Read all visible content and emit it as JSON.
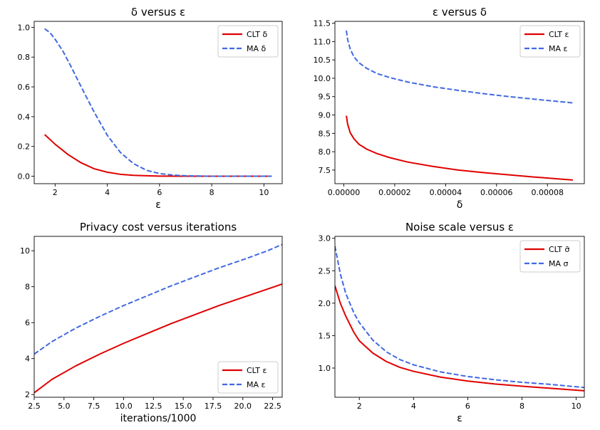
{
  "chart_data": [
    {
      "type": "line",
      "title": "δ versus ε",
      "xlabel": "ε",
      "ylabel": "",
      "xlim": [
        1.2,
        10.7
      ],
      "ylim": [
        -0.05,
        1.04
      ],
      "xticks": [
        2,
        4,
        6,
        8,
        10
      ],
      "xtick_labels": [
        "2",
        "4",
        "6",
        "8",
        "10"
      ],
      "yticks": [
        0.0,
        0.2,
        0.4,
        0.6,
        0.8,
        1.0
      ],
      "ytick_labels": [
        "0.0",
        "0.2",
        "0.4",
        "0.6",
        "0.8",
        "1.0"
      ],
      "legend_position": "top-right",
      "series": [
        {
          "name": "CLT δ",
          "color": "#e00000",
          "dash": "solid",
          "x": [
            1.6,
            2.0,
            2.5,
            3.0,
            3.5,
            4.0,
            4.5,
            5.0,
            5.5,
            6.0,
            7.0,
            8.0,
            9.0,
            10.3
          ],
          "y": [
            0.28,
            0.215,
            0.145,
            0.09,
            0.05,
            0.027,
            0.013,
            0.006,
            0.003,
            0.001,
            0.0,
            0.0,
            0.0,
            0.0
          ]
        },
        {
          "name": "MA δ",
          "color": "#4169e1",
          "dash": "dashed",
          "x": [
            1.6,
            1.8,
            2.0,
            2.3,
            2.6,
            3.0,
            3.5,
            4.0,
            4.5,
            5.0,
            5.5,
            6.0,
            6.5,
            7.0,
            8.0,
            9.0,
            10.3
          ],
          "y": [
            0.99,
            0.965,
            0.92,
            0.84,
            0.74,
            0.6,
            0.43,
            0.275,
            0.16,
            0.085,
            0.04,
            0.018,
            0.008,
            0.003,
            0.0,
            0.0,
            0.0
          ]
        }
      ]
    },
    {
      "type": "line",
      "title": "ε versus δ",
      "xlabel": "δ",
      "ylabel": "",
      "xlim": [
        -3.5e-06,
        9.45e-05
      ],
      "ylim": [
        7.13,
        11.55
      ],
      "xticks": [
        0,
        2e-05,
        4e-05,
        6e-05,
        8e-05
      ],
      "xtick_labels": [
        "0.00000",
        "0.00002",
        "0.00004",
        "0.00006",
        "0.00008"
      ],
      "yticks": [
        7.5,
        8.0,
        8.5,
        9.0,
        9.5,
        10.0,
        10.5,
        11.0,
        11.5
      ],
      "ytick_labels": [
        "7.5",
        "8.0",
        "8.5",
        "9.0",
        "9.5",
        "10.0",
        "10.5",
        "11.0",
        "11.5"
      ],
      "legend_position": "top-right",
      "series": [
        {
          "name": "CLT ε",
          "color": "#e00000",
          "dash": "solid",
          "x": [
            1e-06,
            1.5e-06,
            2.5e-06,
            4e-06,
            6e-06,
            9e-06,
            1.3e-05,
            1.8e-05,
            2.5e-05,
            3.5e-05,
            4.5e-05,
            5.5e-05,
            6.5e-05,
            7.5e-05,
            9e-05
          ],
          "y": [
            8.98,
            8.75,
            8.52,
            8.35,
            8.2,
            8.07,
            7.95,
            7.84,
            7.72,
            7.6,
            7.5,
            7.43,
            7.37,
            7.31,
            7.23
          ]
        },
        {
          "name": "MA ε",
          "color": "#4169e1",
          "dash": "dashed",
          "x": [
            1e-06,
            1.5e-06,
            2.5e-06,
            4e-06,
            6e-06,
            9e-06,
            1.3e-05,
            1.8e-05,
            2.5e-05,
            3.5e-05,
            4.5e-05,
            5.5e-05,
            6.5e-05,
            7.5e-05,
            9e-05
          ],
          "y": [
            11.3,
            11.05,
            10.8,
            10.58,
            10.42,
            10.27,
            10.13,
            10.02,
            9.9,
            9.77,
            9.67,
            9.58,
            9.5,
            9.43,
            9.33
          ]
        }
      ]
    },
    {
      "type": "line",
      "title": "Privacy cost versus iterations",
      "xlabel": "iterations/1000",
      "ylabel": "",
      "xlim": [
        2.5,
        23.3
      ],
      "ylim": [
        1.85,
        10.8
      ],
      "xticks": [
        2.5,
        5.0,
        7.5,
        10.0,
        12.5,
        15.0,
        17.5,
        20.0,
        22.5
      ],
      "xtick_labels": [
        "2.5",
        "5.0",
        "7.5",
        "10.0",
        "12.5",
        "15.0",
        "17.5",
        "20.0",
        "22.5"
      ],
      "yticks": [
        2,
        4,
        6,
        8,
        10
      ],
      "ytick_labels": [
        "2",
        "4",
        "6",
        "8",
        "10"
      ],
      "legend_position": "bottom-right",
      "series": [
        {
          "name": "CLT ε",
          "color": "#e00000",
          "dash": "solid",
          "x": [
            2.5,
            4.0,
            6.0,
            8.0,
            10.0,
            12.0,
            14.0,
            16.0,
            18.0,
            20.0,
            22.0,
            23.3
          ],
          "y": [
            2.1,
            2.85,
            3.6,
            4.25,
            4.85,
            5.4,
            5.95,
            6.45,
            6.95,
            7.4,
            7.85,
            8.15
          ]
        },
        {
          "name": "MA ε",
          "color": "#4169e1",
          "dash": "dashed",
          "x": [
            2.5,
            4.0,
            6.0,
            8.0,
            10.0,
            12.0,
            14.0,
            16.0,
            18.0,
            20.0,
            22.0,
            23.3
          ],
          "y": [
            4.25,
            4.95,
            5.7,
            6.35,
            6.95,
            7.5,
            8.05,
            8.55,
            9.05,
            9.5,
            9.98,
            10.35
          ]
        }
      ]
    },
    {
      "type": "line",
      "title": "Noise scale versus ε",
      "xlabel": "ε",
      "ylabel": "",
      "xlim": [
        1.1,
        10.3
      ],
      "ylim": [
        0.55,
        3.03
      ],
      "xticks": [
        2,
        4,
        6,
        8,
        10
      ],
      "xtick_labels": [
        "2",
        "4",
        "6",
        "8",
        "10"
      ],
      "yticks": [
        1.0,
        1.5,
        2.0,
        2.5,
        3.0
      ],
      "ytick_labels": [
        "1.0",
        "1.5",
        "2.0",
        "2.5",
        "3.0"
      ],
      "legend_position": "top-right",
      "series": [
        {
          "name": "CLT σ̄",
          "color": "#e00000",
          "dash": "solid",
          "x": [
            1.1,
            1.3,
            1.5,
            1.8,
            2.0,
            2.5,
            3.0,
            3.5,
            4.0,
            5.0,
            6.0,
            7.0,
            8.0,
            9.0,
            10.3
          ],
          "y": [
            2.27,
            2.0,
            1.8,
            1.55,
            1.42,
            1.23,
            1.1,
            1.01,
            0.95,
            0.86,
            0.8,
            0.755,
            0.72,
            0.69,
            0.65
          ]
        },
        {
          "name": "MA σ",
          "color": "#4169e1",
          "dash": "dashed",
          "x": [
            1.1,
            1.3,
            1.5,
            1.8,
            2.0,
            2.5,
            3.0,
            3.5,
            4.0,
            5.0,
            6.0,
            7.0,
            8.0,
            9.0,
            10.3
          ],
          "y": [
            2.88,
            2.45,
            2.15,
            1.85,
            1.7,
            1.43,
            1.25,
            1.13,
            1.05,
            0.94,
            0.87,
            0.82,
            0.78,
            0.75,
            0.7
          ]
        }
      ]
    }
  ]
}
